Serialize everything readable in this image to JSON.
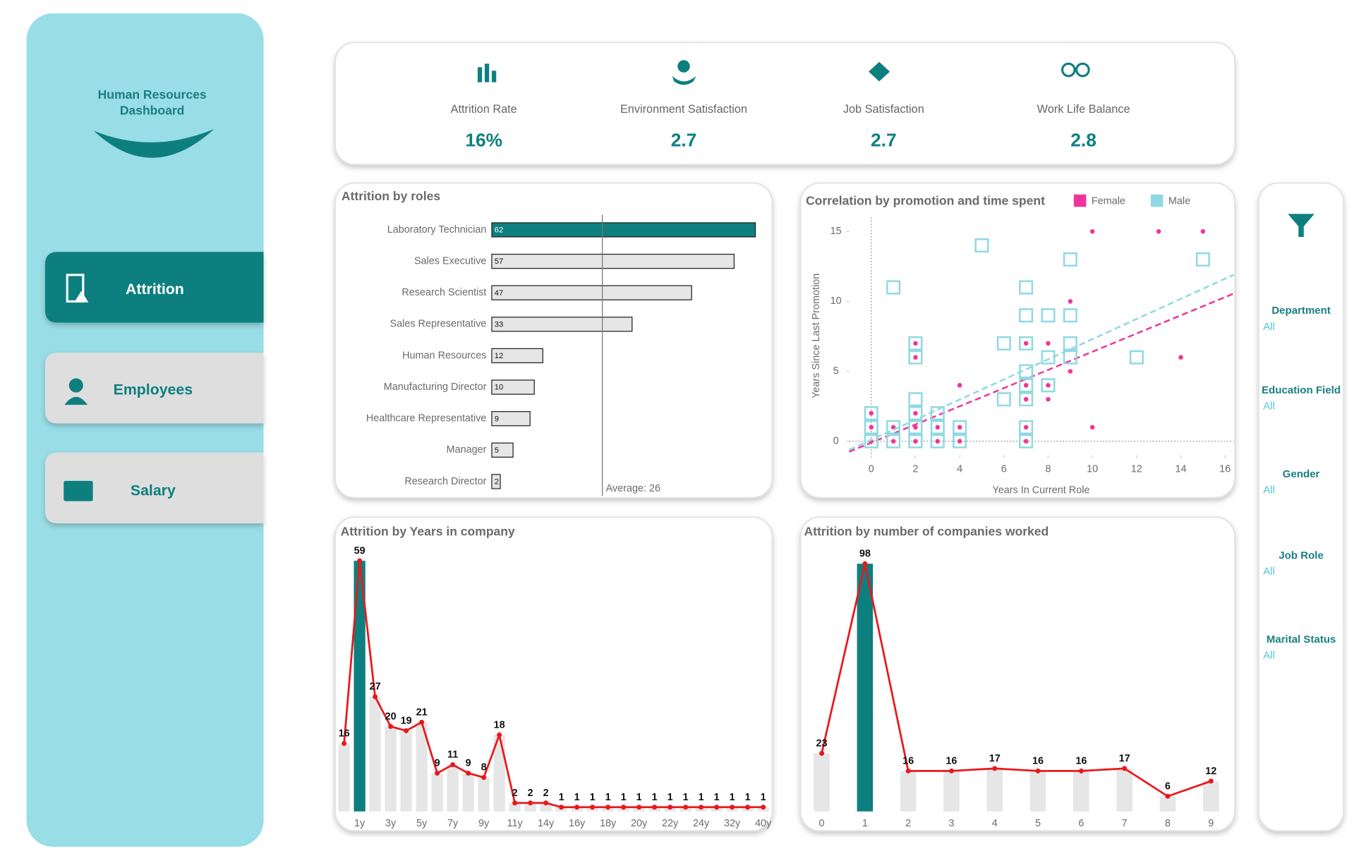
{
  "sidebar": {
    "title_lines": [
      "Human Resources",
      "Dashboard"
    ],
    "nav": [
      "Attrition",
      "Employees",
      "Salary"
    ]
  },
  "kpis": [
    {
      "label": "Attrition Rate",
      "value": "16%"
    },
    {
      "label": "Environment Satisfaction",
      "value": "2.7"
    },
    {
      "label": "Job Satisfaction",
      "value": "2.7"
    },
    {
      "label": "Work Life Balance",
      "value": "2.8"
    }
  ],
  "filters": [
    {
      "label": "Department",
      "value": "All"
    },
    {
      "label": "Education Field",
      "value": "All"
    },
    {
      "label": "Gender",
      "value": "All"
    },
    {
      "label": "Job Role",
      "value": "All"
    },
    {
      "label": "Marital Status",
      "value": "All"
    }
  ],
  "chart_data": [
    {
      "type": "hbar",
      "title": "Attrition by roles",
      "categories": [
        "Laboratory Technician",
        "Sales Executive",
        "Research Scientist",
        "Sales Representative",
        "Human Resources",
        "Manufacturing Director",
        "Healthcare Representative",
        "Manager",
        "Research Director"
      ],
      "values": [
        62,
        57,
        47,
        33,
        12,
        10,
        9,
        5,
        2
      ],
      "colors": [
        "#0e7f7f",
        "#e6e6e6",
        "#e6e6e6",
        "#e6e6e6",
        "#e6e6e6",
        "#e6e6e6",
        "#e6e6e6",
        "#e6e6e6",
        "#e6e6e6"
      ],
      "xlim": [
        0,
        62
      ],
      "reference_line": {
        "value": 26,
        "label": "Average: 26"
      }
    },
    {
      "type": "scatter",
      "title": "Correlation by promotion and time spent",
      "xlabel": "Years In Current Role",
      "ylabel": "Years Since Last Promotion",
      "xlim": [
        -1,
        16.4
      ],
      "ylim": [
        -1,
        16
      ],
      "xticks": [
        0,
        2,
        4,
        6,
        8,
        10,
        12,
        14,
        16
      ],
      "yticks": [
        0,
        5,
        10,
        15
      ],
      "legend": "top-right",
      "series": [
        {
          "name": "Female",
          "color": "#f0359a",
          "marker": "circle",
          "x": [
            10,
            13,
            15,
            9,
            2,
            7,
            8,
            2,
            14,
            9,
            4,
            7,
            8,
            7,
            8,
            0,
            2,
            0,
            1,
            2,
            3,
            4,
            10,
            7,
            0,
            1,
            2,
            3,
            4,
            7
          ],
          "y": [
            15,
            15,
            15,
            10,
            7,
            7,
            7,
            6,
            6,
            5,
            4,
            4,
            4,
            3,
            3,
            2,
            2,
            1,
            1,
            1,
            1,
            1,
            1,
            1,
            0,
            0,
            0,
            0,
            0,
            0
          ],
          "trend": {
            "slope": 0.65,
            "intercept": -0.1
          }
        },
        {
          "name": "Male",
          "color": "#8fd9e3",
          "marker": "square",
          "x": [
            5,
            1,
            7,
            9,
            15,
            7,
            8,
            9,
            6,
            7,
            9,
            2,
            2,
            8,
            9,
            12,
            7,
            7,
            8,
            6,
            7,
            2,
            3,
            2,
            0,
            0,
            1,
            2,
            3,
            4,
            7,
            0,
            1,
            2,
            3,
            4,
            7
          ],
          "y": [
            14,
            11,
            11,
            13,
            13,
            9,
            9,
            9,
            7,
            7,
            7,
            7,
            6,
            6,
            6,
            6,
            5,
            4,
            4,
            3,
            3,
            3,
            2,
            2,
            2,
            1,
            1,
            1,
            1,
            1,
            1,
            0,
            0,
            0,
            0,
            0,
            0
          ],
          "trend": {
            "slope": 0.72,
            "intercept": 0.1
          }
        }
      ]
    },
    {
      "type": "combo",
      "title": "Attrition by Years in company",
      "categories": [
        null,
        "1y",
        null,
        "3y",
        null,
        "5y",
        null,
        "7y",
        null,
        "9y",
        null,
        "11y",
        null,
        "14y",
        null,
        "16y",
        null,
        "18y",
        null,
        "20y",
        null,
        "22y",
        null,
        "24y",
        null,
        "32y",
        null,
        "40y"
      ],
      "values": [
        16,
        59,
        27,
        20,
        19,
        21,
        9,
        11,
        9,
        8,
        18,
        2,
        2,
        2,
        1,
        1,
        1,
        1,
        1,
        1,
        1,
        1,
        1,
        1,
        1,
        1,
        1,
        1
      ],
      "bar_colors": [
        "#e6e6e6",
        "#0e7f7f",
        "#e6e6e6",
        "#e6e6e6",
        "#e6e6e6",
        "#e6e6e6",
        "#e6e6e6",
        "#e6e6e6",
        "#e6e6e6",
        "#e6e6e6",
        "#e6e6e6",
        "#e6e6e6",
        "#e6e6e6",
        "#e6e6e6",
        "#e6e6e6",
        "#e6e6e6",
        "#e6e6e6",
        "#e6e6e6",
        "#e6e6e6",
        "#e6e6e6",
        "#e6e6e6",
        "#e6e6e6",
        "#e6e6e6",
        "#e6e6e6",
        "#e6e6e6",
        "#e6e6e6",
        "#e6e6e6",
        "#e6e6e6"
      ],
      "line_color": "#e8191c",
      "ylim": [
        0,
        62
      ]
    },
    {
      "type": "combo",
      "title": "Attrition by number of companies worked",
      "categories": [
        0,
        1,
        2,
        3,
        4,
        5,
        6,
        7,
        8,
        9
      ],
      "values": [
        23,
        98,
        16,
        16,
        17,
        16,
        16,
        17,
        6,
        12
      ],
      "bar_colors": [
        "#e6e6e6",
        "#0e7f7f",
        "#e6e6e6",
        "#e6e6e6",
        "#e6e6e6",
        "#e6e6e6",
        "#e6e6e6",
        "#e6e6e6",
        "#e6e6e6",
        "#e6e6e6"
      ],
      "line_color": "#e8191c",
      "ylim": [
        0,
        100
      ]
    }
  ]
}
